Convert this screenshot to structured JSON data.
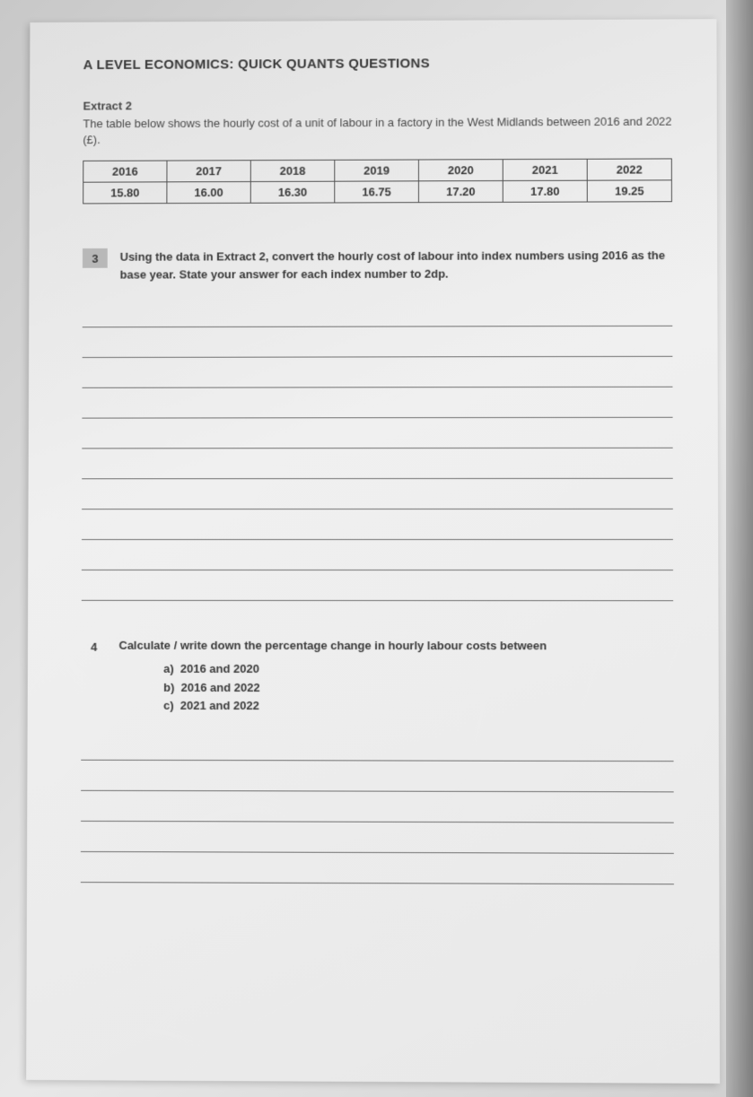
{
  "header": {
    "title": "A LEVEL ECONOMICS: QUICK QUANTS QUESTIONS"
  },
  "extract": {
    "label": "Extract 2",
    "description": "The table below shows the hourly cost of a unit of labour in a factory in the West Midlands between 2016 and 2022 (£)."
  },
  "table": {
    "type": "table",
    "columns": [
      "2016",
      "2017",
      "2018",
      "2019",
      "2020",
      "2021",
      "2022"
    ],
    "rows": [
      [
        "15.80",
        "16.00",
        "16.30",
        "16.75",
        "17.20",
        "17.80",
        "19.25"
      ]
    ],
    "border_color": "#505050",
    "text_color": "#3a3a3a",
    "font_size": 13
  },
  "questions": {
    "q3": {
      "number": "3",
      "text": "Using the data in Extract 2, convert the hourly cost of labour into index numbers using 2016 as the base year. State your answer for each index number to 2dp.",
      "answer_line_count": 10
    },
    "q4": {
      "number": "4",
      "text": "Calculate / write down the percentage change in hourly labour costs between",
      "sub_items": [
        {
          "letter": "a)",
          "text": "2016 and 2020"
        },
        {
          "letter": "b)",
          "text": "2016 and 2022"
        },
        {
          "letter": "c)",
          "text": "2021 and 2022"
        }
      ],
      "answer_line_count": 5
    }
  },
  "styling": {
    "background_gradient": [
      "#c8c8c8",
      "#d8d8d8",
      "#e8e8e8",
      "#d0d0d0"
    ],
    "page_background": [
      "#e0e0e0",
      "#f0f0f0",
      "#e8e8e8"
    ],
    "text_color": "#3a3a3a",
    "line_color": "#707070",
    "font_family": "Arial"
  }
}
